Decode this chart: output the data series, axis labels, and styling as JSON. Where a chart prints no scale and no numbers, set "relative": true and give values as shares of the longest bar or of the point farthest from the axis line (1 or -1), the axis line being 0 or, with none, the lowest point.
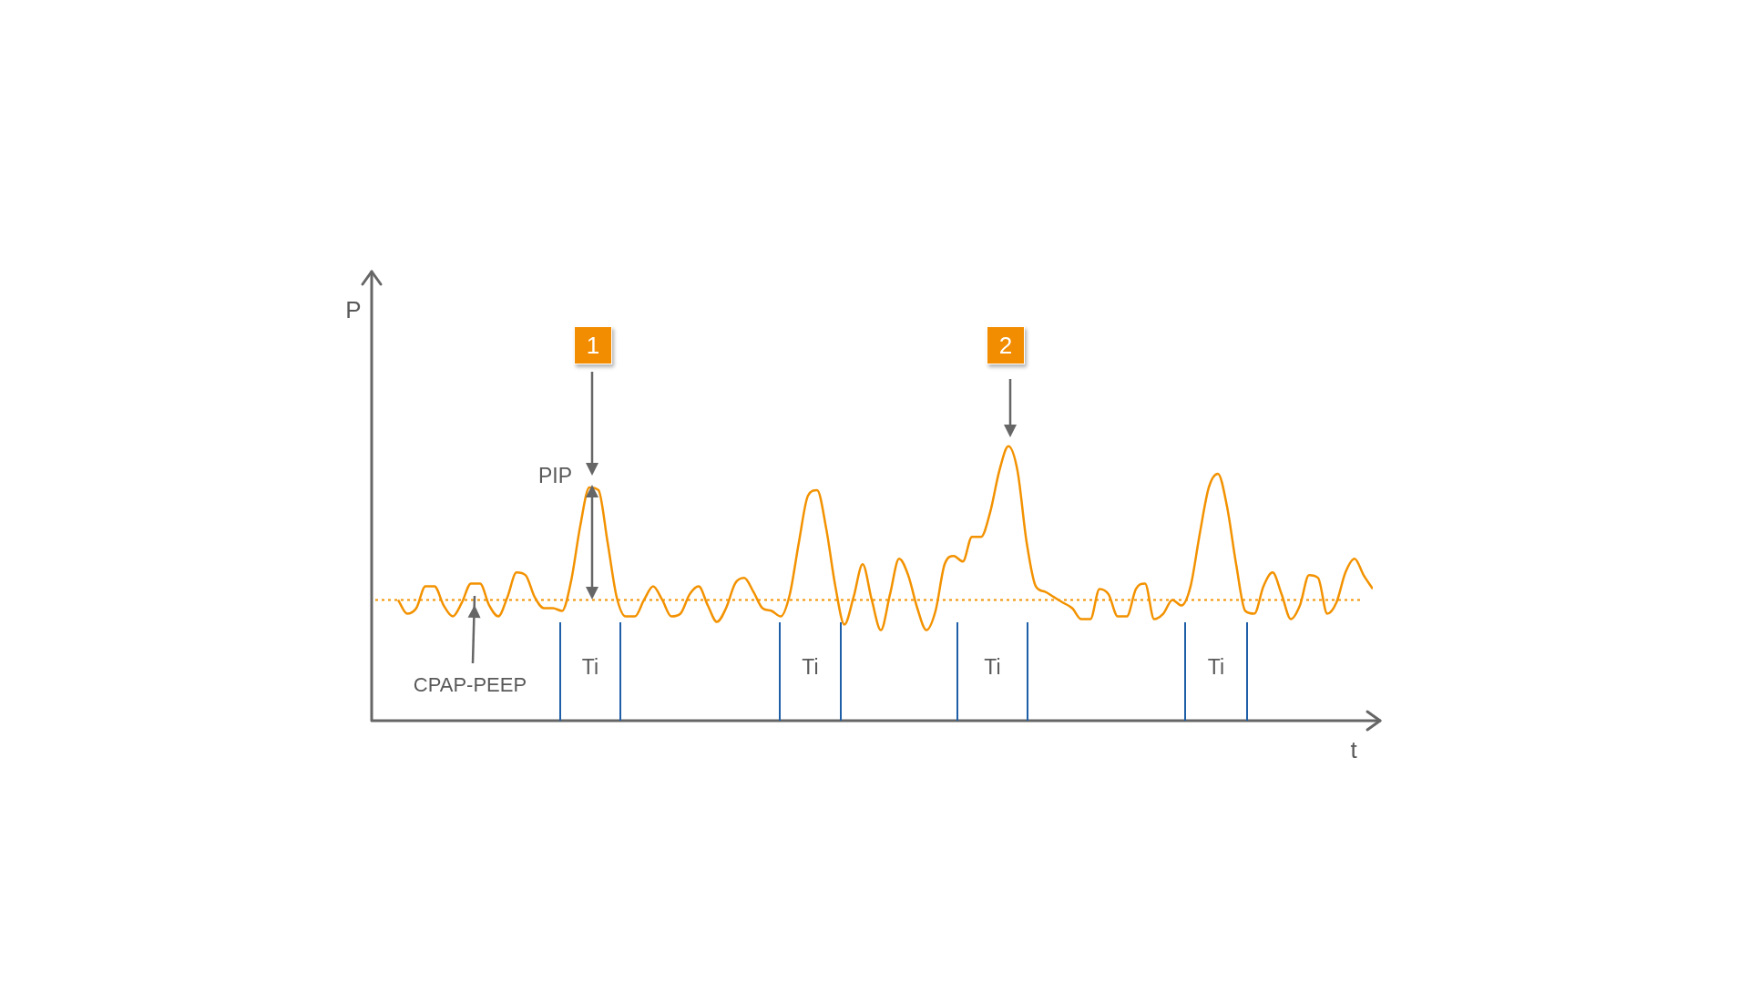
{
  "chart_data": {
    "type": "line",
    "relative": true,
    "xlabel": "t",
    "legend": false,
    "grid": false,
    "tick_labels": false,
    "marker": "none",
    "line_style": "solid",
    "categories": [
      null,
      null,
      null,
      null,
      null,
      null,
      null,
      null,
      null,
      null,
      null,
      null,
      null,
      null,
      null,
      null,
      null,
      null,
      null,
      null,
      null,
      null,
      null,
      null,
      null,
      null,
      null,
      null,
      null,
      null,
      null,
      null,
      null,
      null,
      null,
      null,
      null,
      null,
      null,
      null,
      null,
      null,
      null,
      null,
      null,
      null,
      null,
      null,
      null,
      null,
      null,
      null,
      null,
      null,
      null,
      null,
      null,
      null,
      null,
      null,
      null,
      null,
      null,
      null,
      null,
      null,
      null,
      null,
      null,
      null,
      null,
      null,
      null,
      null,
      null,
      null,
      null,
      null,
      null,
      null,
      null,
      null,
      null,
      null,
      null,
      null,
      null,
      null,
      null,
      null,
      null,
      null,
      null,
      null,
      null,
      null,
      null,
      null,
      null,
      null,
      null,
      null,
      null,
      null,
      null,
      null,
      null,
      null
    ],
    "series": [
      {
        "color": "#f39200",
        "values": [
          0.44,
          0.39,
          0.41,
          0.49,
          0.49,
          0.42,
          0.38,
          0.43,
          0.5,
          0.5,
          0.42,
          0.38,
          0.45,
          0.54,
          0.53,
          0.45,
          0.41,
          0.41,
          0.4,
          0.51,
          0.71,
          0.85,
          0.84,
          0.65,
          0.45,
          0.38,
          0.38,
          0.44,
          0.49,
          0.44,
          0.38,
          0.39,
          0.46,
          0.49,
          0.42,
          0.36,
          0.41,
          0.5,
          0.52,
          0.47,
          0.41,
          0.4,
          0.38,
          0.46,
          0.65,
          0.82,
          0.84,
          0.7,
          0.49,
          0.35,
          0.45,
          0.57,
          0.44,
          0.33,
          0.46,
          0.59,
          0.53,
          0.41,
          0.33,
          0.4,
          0.57,
          0.6,
          0.58,
          0.67,
          0.67,
          0.76,
          0.91,
          1,
          0.91,
          0.65,
          0.49,
          0.47,
          0.45,
          0.43,
          0.41,
          0.37,
          0.37,
          0.48,
          0.46,
          0.38,
          0.38,
          0.48,
          0.5,
          0.37,
          0.39,
          0.44,
          0.42,
          0.49,
          0.68,
          0.85,
          0.9,
          0.78,
          0.57,
          0.4,
          0.39,
          0.49,
          0.54,
          0.46,
          0.37,
          0.42,
          0.53,
          0.52,
          0.39,
          0.43,
          0.54,
          0.59,
          0.53,
          0.48
        ]
      }
    ],
    "ref_lines": [
      {
        "axis": "y",
        "value": 0.44,
        "label": "CPAP-PEEP",
        "color": "#f39200",
        "line_style": "dotted"
      }
    ],
    "annotations": [
      "1",
      "2",
      "PIP",
      "Ti",
      "Ti",
      "Ti",
      "Ti",
      "P"
    ]
  }
}
